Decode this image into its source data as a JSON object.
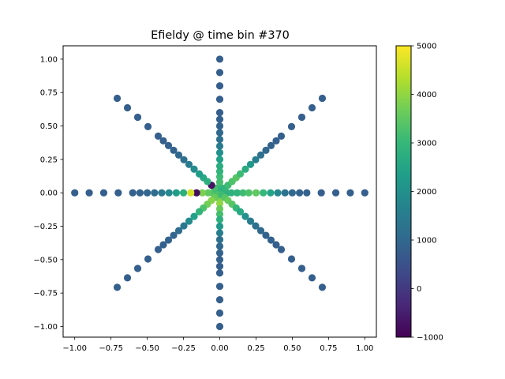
{
  "chart_data": {
    "type": "scatter",
    "title": "Efieldy @ time bin #370",
    "xlabel": "",
    "ylabel": "",
    "xlim": [
      -1.08,
      1.08
    ],
    "ylim": [
      -1.08,
      1.1
    ],
    "xticks": [
      -1.0,
      -0.75,
      -0.5,
      -0.25,
      0.0,
      0.25,
      0.5,
      0.75,
      1.0
    ],
    "xtick_labels": [
      "−1.00",
      "−0.75",
      "−0.50",
      "−0.25",
      "0.00",
      "0.25",
      "0.50",
      "0.75",
      "1.00"
    ],
    "yticks": [
      -1.0,
      -0.75,
      -0.5,
      -0.25,
      0.0,
      0.25,
      0.5,
      0.75,
      1.0
    ],
    "ytick_labels": [
      "−1.00",
      "−0.75",
      "−0.50",
      "−0.25",
      "0.00",
      "0.25",
      "0.50",
      "0.75",
      "1.00"
    ],
    "colormap": "viridis",
    "colorbar": {
      "vmin": -1000,
      "vmax": 5000,
      "ticks": [
        -1000,
        0,
        1000,
        2000,
        3000,
        4000,
        5000
      ],
      "tick_labels": [
        "−1000",
        "0",
        "1000",
        "2000",
        "3000",
        "4000",
        "5000"
      ]
    },
    "rays": [
      {
        "name": "east",
        "angle_deg": 0,
        "r_values": [
          0.02,
          0.05,
          0.08,
          0.12,
          0.16,
          0.2,
          0.25,
          0.3,
          0.35,
          0.4,
          0.45,
          0.5,
          0.55,
          0.6,
          0.7,
          0.8,
          0.9,
          1.0
        ],
        "values": [
          2700,
          2800,
          2850,
          2900,
          3100,
          3300,
          3500,
          3000,
          2500,
          1800,
          1300,
          1000,
          900,
          850,
          800,
          800,
          800,
          800
        ]
      },
      {
        "name": "north",
        "angle_deg": 90,
        "r_values": [
          0.02,
          0.05,
          0.08,
          0.12,
          0.16,
          0.2,
          0.25,
          0.3,
          0.35,
          0.4,
          0.45,
          0.5,
          0.55,
          0.6,
          0.7,
          0.8,
          0.9,
          1.0
        ],
        "values": [
          2800,
          3000,
          3200,
          3100,
          2900,
          2700,
          2400,
          2000,
          1500,
          1200,
          1000,
          900,
          850,
          800,
          800,
          800,
          800,
          800
        ]
      },
      {
        "name": "west",
        "angle_deg": 180,
        "r_values": [
          0.02,
          0.05,
          0.08,
          0.12,
          0.16,
          0.2,
          0.25,
          0.3,
          0.35,
          0.4,
          0.45,
          0.5,
          0.55,
          0.6,
          0.7,
          0.8,
          0.9,
          1.0
        ],
        "values": [
          3000,
          3300,
          3500,
          3800,
          -800,
          4600,
          2800,
          2300,
          1800,
          1400,
          1100,
          950,
          900,
          850,
          800,
          800,
          800,
          800
        ]
      },
      {
        "name": "south",
        "angle_deg": 270,
        "r_values": [
          0.02,
          0.05,
          0.08,
          0.12,
          0.16,
          0.2,
          0.25,
          0.3,
          0.35,
          0.4,
          0.45,
          0.5,
          0.55,
          0.6,
          0.7,
          0.8,
          0.9,
          1.0
        ],
        "values": [
          3600,
          3800,
          4000,
          3600,
          3200,
          2800,
          2200,
          1600,
          1200,
          1000,
          900,
          850,
          800,
          800,
          800,
          800,
          800,
          800
        ]
      },
      {
        "name": "northeast",
        "angle_deg": 45,
        "r_values": [
          0.02,
          0.05,
          0.08,
          0.12,
          0.16,
          0.2,
          0.25,
          0.3,
          0.35,
          0.4,
          0.45,
          0.5,
          0.55,
          0.6,
          0.7,
          0.8,
          0.9,
          1.0
        ],
        "values": [
          2700,
          2900,
          3100,
          3300,
          3400,
          3100,
          2700,
          2200,
          1600,
          1200,
          1000,
          900,
          850,
          800,
          800,
          800,
          800,
          800
        ]
      },
      {
        "name": "northwest",
        "angle_deg": 135,
        "r_values": [
          0.02,
          0.05,
          0.08,
          0.12,
          0.16,
          0.2,
          0.25,
          0.3,
          0.35,
          0.4,
          0.45,
          0.5,
          0.55,
          0.6,
          0.7,
          0.8,
          0.9,
          1.0
        ],
        "values": [
          2900,
          3200,
          -700,
          2800,
          2600,
          2300,
          1900,
          1500,
          1200,
          1000,
          900,
          850,
          800,
          800,
          800,
          800,
          800,
          800
        ]
      },
      {
        "name": "southwest",
        "angle_deg": 225,
        "r_values": [
          0.02,
          0.05,
          0.08,
          0.12,
          0.16,
          0.2,
          0.25,
          0.3,
          0.35,
          0.4,
          0.45,
          0.5,
          0.55,
          0.6,
          0.7,
          0.8,
          0.9,
          1.0
        ],
        "values": [
          3300,
          3600,
          3900,
          3700,
          3300,
          2900,
          2400,
          1900,
          1400,
          1100,
          950,
          900,
          850,
          800,
          800,
          800,
          800,
          800
        ]
      },
      {
        "name": "southeast",
        "angle_deg": 315,
        "r_values": [
          0.02,
          0.05,
          0.08,
          0.12,
          0.16,
          0.2,
          0.25,
          0.3,
          0.35,
          0.4,
          0.45,
          0.5,
          0.55,
          0.6,
          0.7,
          0.8,
          0.9,
          1.0
        ],
        "values": [
          3100,
          3400,
          3600,
          3400,
          3000,
          2600,
          2000,
          1500,
          1200,
          1000,
          900,
          850,
          800,
          800,
          800,
          800,
          800,
          800
        ]
      }
    ],
    "grid": false,
    "legend": "none",
    "colorbar_placement": "right"
  }
}
